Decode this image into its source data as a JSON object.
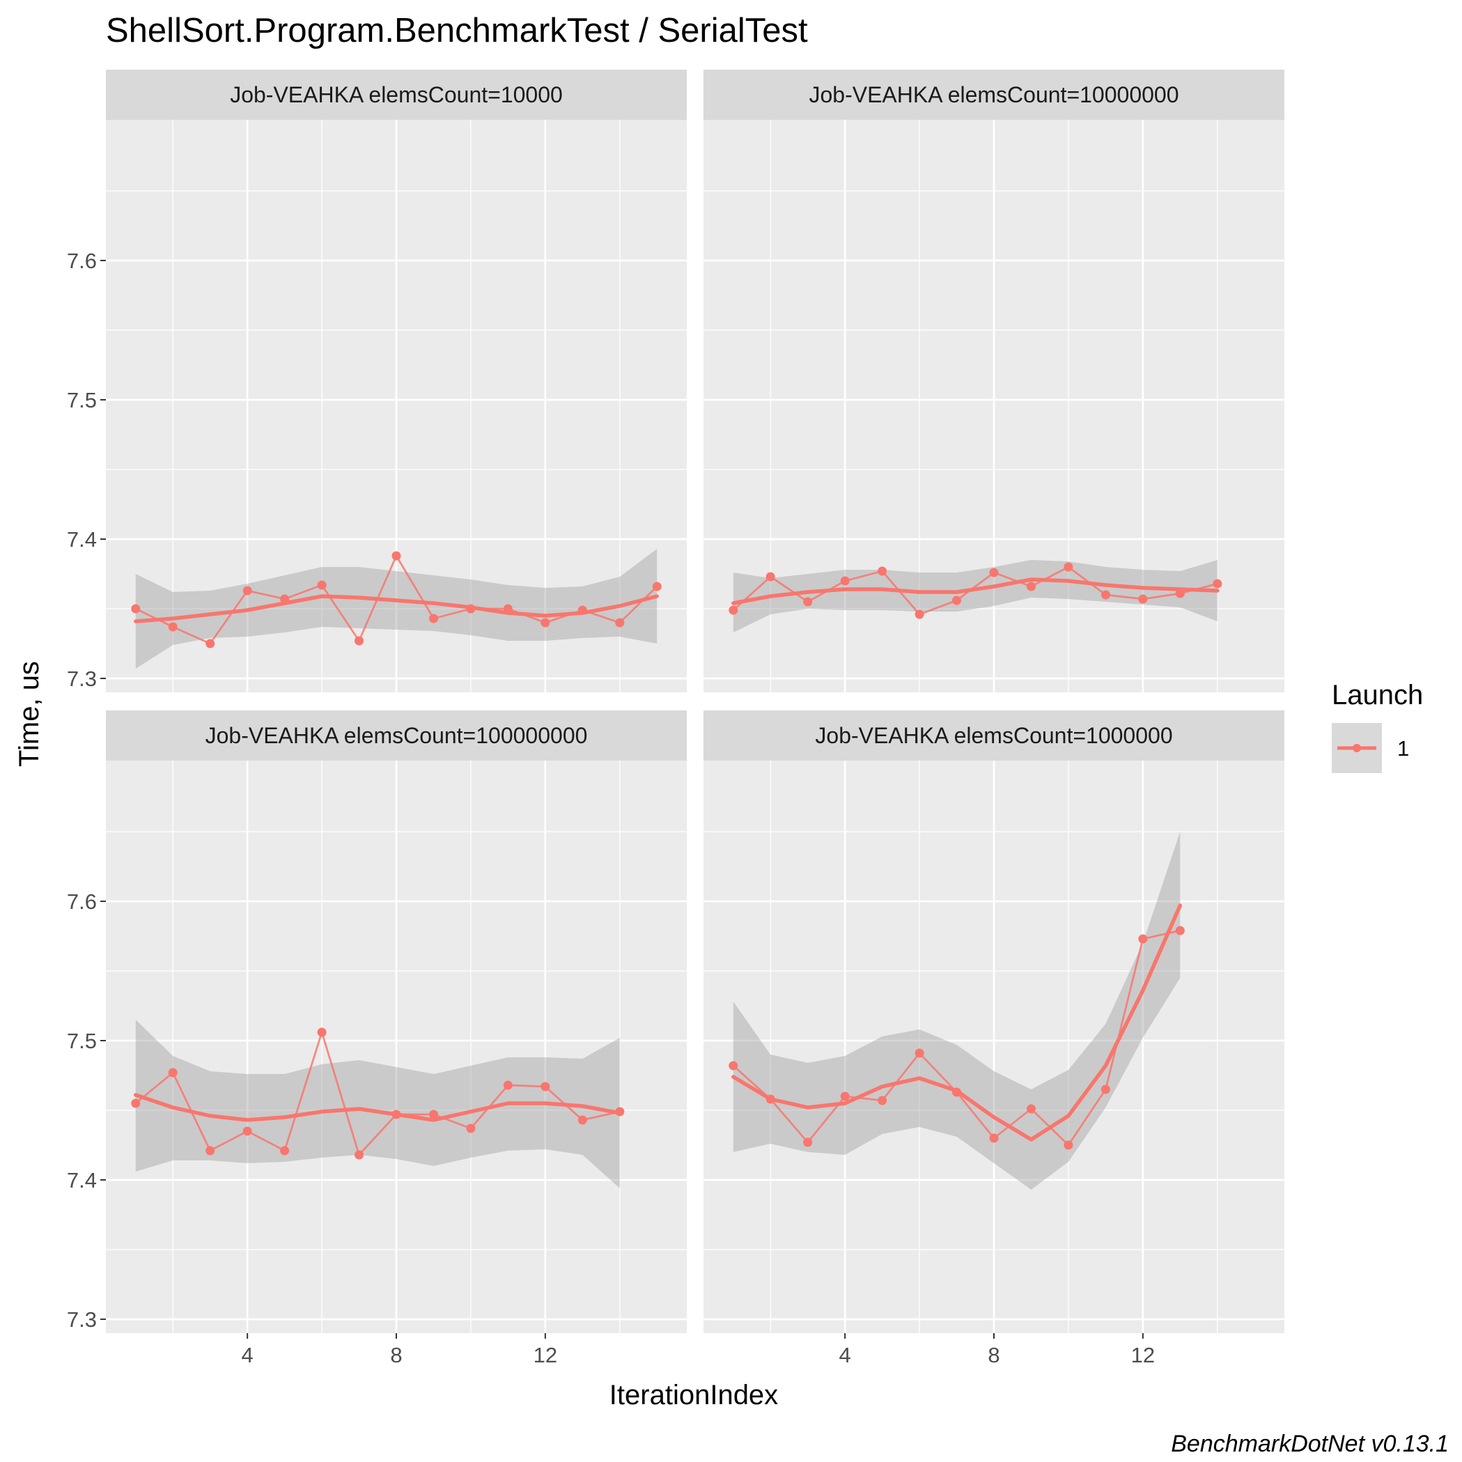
{
  "title": "ShellSort.Program.BenchmarkTest / SerialTest",
  "caption": "BenchmarkDotNet v0.13.1",
  "colors": {
    "panel_bg": "#EBEBEB",
    "strip_bg": "#D9D9D9",
    "grid": "#FFFFFF",
    "series": "#F8766D",
    "ribbon": "#999999"
  },
  "chart_data": {
    "type": "line",
    "facet_grid": "2x2",
    "xlabel": "IterationIndex",
    "ylabel": "Time, us",
    "xlim": [
      0.2,
      15.8
    ],
    "x_ticks": [
      4,
      8,
      12
    ],
    "ylim": [
      7.29,
      7.701
    ],
    "y_ticks": [
      7.3,
      7.4,
      7.5,
      7.6
    ],
    "legend": {
      "title": "Launch",
      "position": "right",
      "items": [
        {
          "label": "1"
        }
      ]
    },
    "panels": [
      {
        "strip": "Job-VEAHKA elemsCount=10000",
        "series": [
          {
            "name": "1",
            "x": [
              1,
              2,
              3,
              4,
              5,
              6,
              7,
              8,
              9,
              10,
              11,
              12,
              13,
              14,
              15
            ],
            "y": [
              7.35,
              7.337,
              7.325,
              7.363,
              7.357,
              7.367,
              7.327,
              7.388,
              7.343,
              7.35,
              7.35,
              7.34,
              7.349,
              7.34,
              7.366
            ],
            "smooth": [
              7.341,
              7.343,
              7.346,
              7.349,
              7.354,
              7.359,
              7.358,
              7.356,
              7.354,
              7.351,
              7.347,
              7.345,
              7.347,
              7.352,
              7.359
            ],
            "ribbon_lo": [
              7.307,
              7.324,
              7.329,
              7.33,
              7.333,
              7.337,
              7.336,
              7.335,
              7.334,
              7.331,
              7.327,
              7.327,
              7.329,
              7.33,
              7.325
            ],
            "ribbon_hi": [
              7.375,
              7.362,
              7.363,
              7.368,
              7.374,
              7.38,
              7.38,
              7.377,
              7.374,
              7.371,
              7.367,
              7.365,
              7.366,
              7.373,
              7.393
            ]
          }
        ]
      },
      {
        "strip": "Job-VEAHKA elemsCount=10000000",
        "series": [
          {
            "name": "1",
            "x": [
              1,
              2,
              3,
              4,
              5,
              6,
              7,
              8,
              9,
              10,
              11,
              12,
              13,
              14
            ],
            "y": [
              7.349,
              7.373,
              7.355,
              7.37,
              7.377,
              7.346,
              7.356,
              7.376,
              7.366,
              7.38,
              7.36,
              7.357,
              7.361,
              7.368
            ],
            "smooth": [
              7.354,
              7.359,
              7.362,
              7.364,
              7.364,
              7.362,
              7.362,
              7.366,
              7.371,
              7.37,
              7.367,
              7.365,
              7.364,
              7.363
            ],
            "ribbon_lo": [
              7.333,
              7.346,
              7.35,
              7.349,
              7.349,
              7.348,
              7.348,
              7.352,
              7.358,
              7.357,
              7.355,
              7.353,
              7.351,
              7.341
            ],
            "ribbon_hi": [
              7.376,
              7.372,
              7.375,
              7.378,
              7.378,
              7.376,
              7.376,
              7.38,
              7.385,
              7.384,
              7.38,
              7.378,
              7.377,
              7.385
            ]
          }
        ]
      },
      {
        "strip": "Job-VEAHKA elemsCount=100000000",
        "series": [
          {
            "name": "1",
            "x": [
              1,
              2,
              3,
              4,
              5,
              6,
              7,
              8,
              9,
              10,
              11,
              12,
              13,
              14
            ],
            "y": [
              7.455,
              7.477,
              7.421,
              7.435,
              7.421,
              7.506,
              7.418,
              7.447,
              7.447,
              7.437,
              7.468,
              7.467,
              7.443,
              7.449
            ],
            "smooth": [
              7.461,
              7.452,
              7.446,
              7.443,
              7.445,
              7.449,
              7.451,
              7.447,
              7.443,
              7.449,
              7.455,
              7.455,
              7.453,
              7.448
            ],
            "ribbon_lo": [
              7.406,
              7.414,
              7.414,
              7.412,
              7.413,
              7.416,
              7.418,
              7.415,
              7.41,
              7.416,
              7.421,
              7.422,
              7.418,
              7.394
            ],
            "ribbon_hi": [
              7.515,
              7.489,
              7.478,
              7.476,
              7.476,
              7.483,
              7.486,
              7.481,
              7.476,
              7.482,
              7.488,
              7.488,
              7.487,
              7.502
            ]
          }
        ]
      },
      {
        "strip": "Job-VEAHKA elemsCount=1000000",
        "series": [
          {
            "name": "1",
            "x": [
              1,
              2,
              3,
              4,
              5,
              6,
              7,
              8,
              9,
              10,
              11,
              12,
              13
            ],
            "y": [
              7.482,
              7.458,
              7.427,
              7.46,
              7.457,
              7.491,
              7.463,
              7.43,
              7.451,
              7.425,
              7.465,
              7.573,
              7.579
            ],
            "smooth": [
              7.474,
              7.458,
              7.452,
              7.455,
              7.467,
              7.473,
              7.464,
              7.445,
              7.429,
              7.446,
              7.482,
              7.536,
              7.597
            ],
            "ribbon_lo": [
              7.42,
              7.426,
              7.42,
              7.418,
              7.433,
              7.438,
              7.431,
              7.412,
              7.393,
              7.413,
              7.452,
              7.502,
              7.545
            ],
            "ribbon_hi": [
              7.528,
              7.49,
              7.484,
              7.489,
              7.503,
              7.508,
              7.497,
              7.478,
              7.465,
              7.479,
              7.512,
              7.57,
              7.65
            ]
          }
        ]
      }
    ]
  }
}
